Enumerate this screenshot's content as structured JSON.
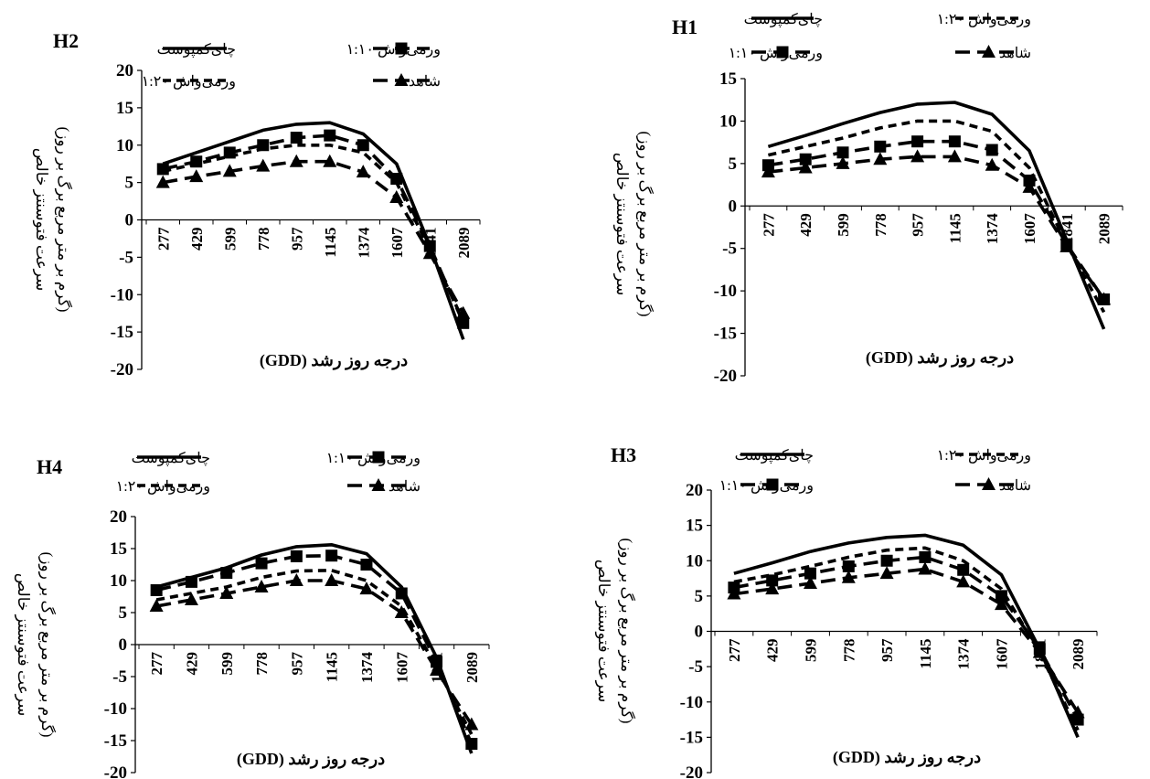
{
  "chart_data": [
    {
      "panel": "H2",
      "type": "line",
      "title": "H2",
      "xlabel": "درجه روز رشد (GDD)",
      "ylabel": "سرعت فتوسنتز خالص",
      "ylabel_unit": "(گرم بر متر مربع برگ بر روز)",
      "categories": [
        "277",
        "429",
        "599",
        "778",
        "957",
        "1145",
        "1374",
        "1607",
        "1841",
        "2089"
      ],
      "ylim": [
        -20,
        20
      ],
      "yticks": [
        "20",
        "15",
        "10",
        "5",
        "0",
        "-5",
        "-10",
        "-15",
        "-20"
      ],
      "series": [
        {
          "name": "چای‌کمپوست",
          "values": [
            7.5,
            9,
            10.5,
            12,
            12.8,
            13,
            11.5,
            7.5,
            -3.5,
            -16
          ]
        },
        {
          "name": "ورمی‌واش ۱:۱۰",
          "values": [
            6.8,
            7.8,
            9,
            10,
            11,
            11.3,
            10,
            5.5,
            -3.5,
            -13.8
          ]
        },
        {
          "name": "ورمی‌واش ۱:۲۰",
          "values": [
            6.5,
            7.5,
            8.5,
            9.5,
            10,
            10,
            9,
            5,
            -4,
            -13.5
          ]
        },
        {
          "name": "شاهد",
          "values": [
            5,
            5.8,
            6.5,
            7.2,
            7.8,
            7.8,
            6.4,
            3,
            -4.5,
            -12.5
          ]
        }
      ]
    },
    {
      "panel": "H1",
      "type": "line",
      "title": "H1",
      "xlabel": "درجه روز رشد (GDD)",
      "ylabel": "سرعت فتوسنتز خالص",
      "ylabel_unit": "(گرم بر متر مربع برگ بر روز)",
      "categories": [
        "277",
        "429",
        "599",
        "778",
        "957",
        "1145",
        "1374",
        "1607",
        "1841",
        "2089"
      ],
      "ylim": [
        -20,
        15
      ],
      "yticks": [
        "15",
        "10",
        "5",
        "0",
        "-5",
        "-10",
        "-15",
        "-20"
      ],
      "series": [
        {
          "name": "چای‌کمپوست",
          "values": [
            7,
            8.3,
            9.7,
            11,
            12,
            12.2,
            10.8,
            6.5,
            -4,
            -14.5
          ]
        },
        {
          "name": "ورمی‌واش ۱:۲۰",
          "values": [
            6,
            7,
            8,
            9.2,
            10,
            10,
            8.8,
            4.5,
            -4.5,
            -12.5
          ]
        },
        {
          "name": "ورمی‌واش ۱:۱۰",
          "values": [
            4.8,
            5.5,
            6.3,
            7,
            7.6,
            7.6,
            6.6,
            3,
            -4.5,
            -11
          ]
        },
        {
          "name": "شاهد",
          "values": [
            4,
            4.5,
            5,
            5.5,
            5.8,
            5.8,
            4.8,
            2.2,
            -4.8,
            -11
          ]
        }
      ]
    },
    {
      "panel": "H4",
      "type": "line",
      "title": "H4",
      "xlabel": "درجه روز رشد (GDD)",
      "ylabel": "سرعت فتوسنتز خالص",
      "ylabel_unit": "(گرم بر متر مربع برگ بر روز)",
      "categories": [
        "277",
        "429",
        "599",
        "778",
        "957",
        "1145",
        "1374",
        "1607",
        "1841",
        "2089"
      ],
      "ylim": [
        -20,
        20
      ],
      "yticks": [
        "20",
        "15",
        "10",
        "5",
        "0",
        "-5",
        "-10",
        "-15",
        "-20"
      ],
      "series": [
        {
          "name": "چای‌کمپوست",
          "values": [
            9,
            10.5,
            12,
            14,
            15.3,
            15.6,
            14.2,
            9,
            -2,
            -17
          ]
        },
        {
          "name": "ورمی‌واش ۱:۱۰",
          "values": [
            8.5,
            9.8,
            11.2,
            12.7,
            13.8,
            13.9,
            12.5,
            8,
            -2.7,
            -15.5
          ]
        },
        {
          "name": "ورمی‌واش ۱:۲۰",
          "values": [
            7,
            8,
            9,
            10.5,
            11.5,
            11.6,
            10,
            6,
            -3.5,
            -14
          ]
        },
        {
          "name": "شاهد",
          "values": [
            6,
            7,
            8,
            9,
            10,
            10,
            8.7,
            5,
            -4,
            -12.5
          ]
        }
      ]
    },
    {
      "panel": "H3",
      "type": "line",
      "title": "H3",
      "xlabel": "درجه روز رشد (GDD)",
      "ylabel": "سرعت فتوسنتز خالص",
      "ylabel_unit": "(گرم بر متر مربع برگ بر روز)",
      "categories": [
        "277",
        "429",
        "599",
        "778",
        "957",
        "1145",
        "1374",
        "1607",
        "1841",
        "2089"
      ],
      "ylim": [
        -20,
        20
      ],
      "yticks": [
        "20",
        "15",
        "10",
        "5",
        "0",
        "-5",
        "-10",
        "-15",
        "-20"
      ],
      "series": [
        {
          "name": "چای‌کمپوست",
          "values": [
            8.2,
            9.7,
            11.3,
            12.5,
            13.3,
            13.6,
            12.2,
            8,
            -2.5,
            -15
          ]
        },
        {
          "name": "ورمی‌واش ۱:۲۰",
          "values": [
            7,
            8,
            9.2,
            10.5,
            11.5,
            11.8,
            10,
            6,
            -3,
            -14
          ]
        },
        {
          "name": "ورمی‌واش ۱:۱۰",
          "values": [
            6.2,
            7.2,
            8.2,
            9.2,
            10,
            10.5,
            8.7,
            5,
            -2.5,
            -12.5
          ]
        },
        {
          "name": "شاهد",
          "values": [
            5.3,
            6,
            6.8,
            7.6,
            8.2,
            8.8,
            7,
            3.8,
            -3,
            -11.5
          ]
        }
      ]
    }
  ]
}
